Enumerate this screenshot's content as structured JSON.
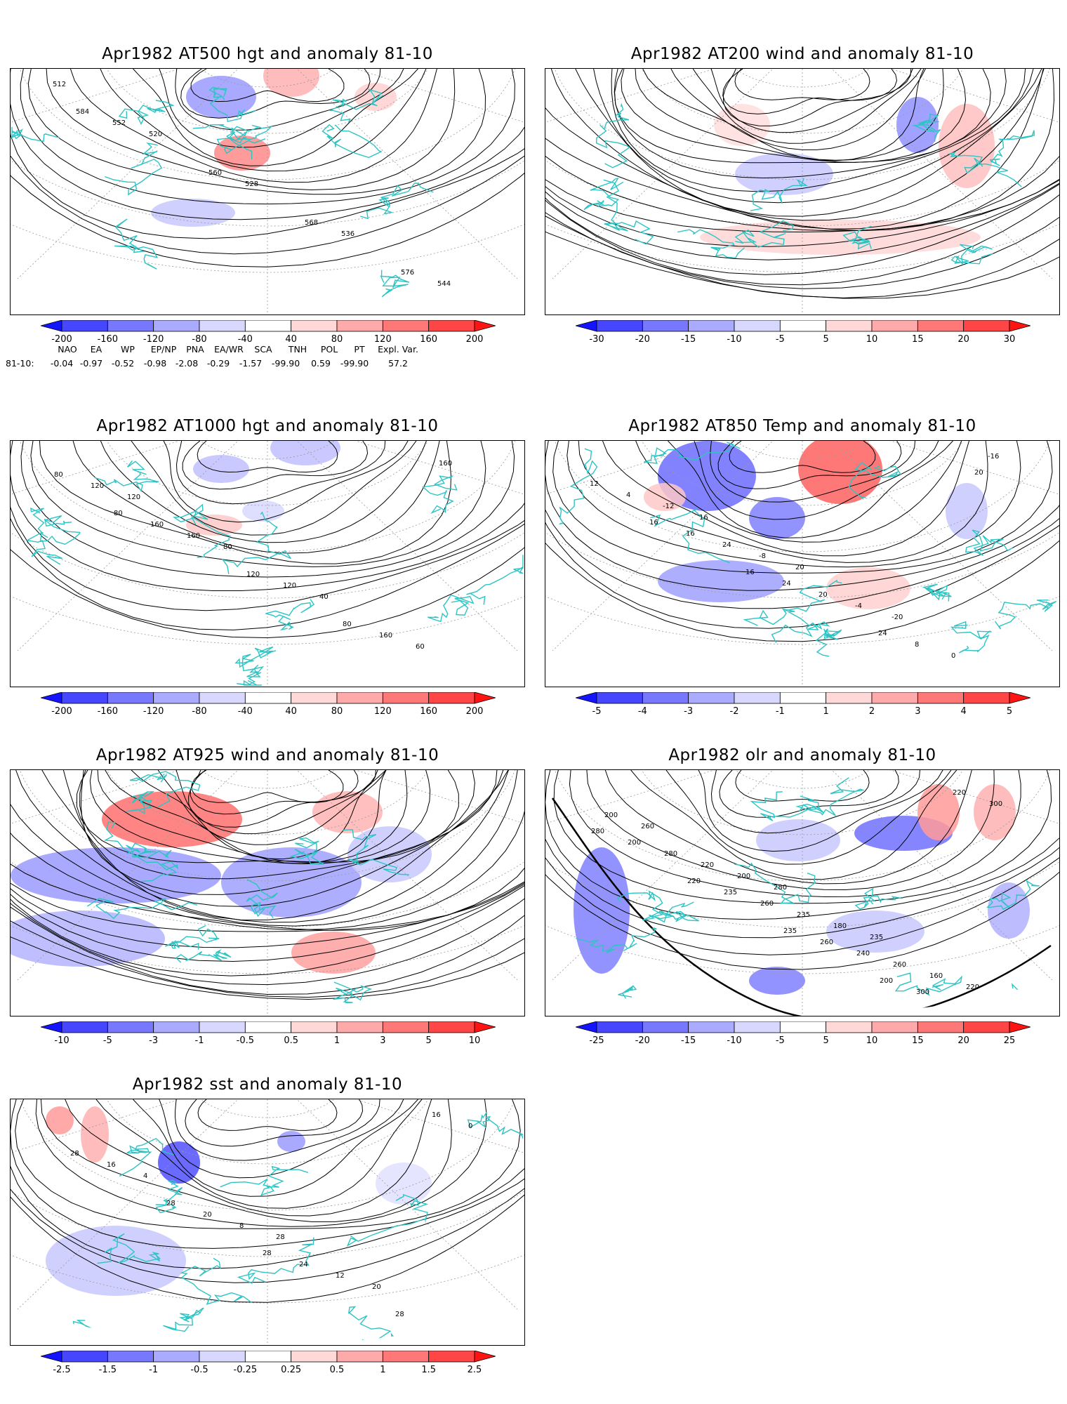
{
  "panels": [
    {
      "id": "p1",
      "title": "Apr1982 AT500 hgt and anomaly 81-10",
      "colorbar": {
        "ticks": [
          "-200",
          "-160",
          "-120",
          "-80",
          "-40",
          "40",
          "80",
          "120",
          "160",
          "200"
        ],
        "colors": [
          "#1414ff",
          "#4646ff",
          "#7878ff",
          "#aaaaff",
          "#d8d8ff",
          "#ffffff",
          "#ffd8d8",
          "#ffaaaa",
          "#ff7878",
          "#ff4646",
          "#ff1414"
        ]
      },
      "contour_labels": [
        "512",
        "520",
        "528",
        "536",
        "544",
        "552",
        "560",
        "568",
        "576",
        "584"
      ]
    },
    {
      "id": "p2",
      "title": "Apr1982 AT200 wind and anomaly 81-10",
      "colorbar": {
        "ticks": [
          "-30",
          "-20",
          "-15",
          "-10",
          "-5",
          "5",
          "10",
          "15",
          "20",
          "30"
        ],
        "colors": [
          "#1414ff",
          "#4646ff",
          "#7878ff",
          "#aaaaff",
          "#d8d8ff",
          "#ffffff",
          "#ffd8d8",
          "#ffaaaa",
          "#ff7878",
          "#ff4646",
          "#ff1414"
        ]
      },
      "contour_labels": []
    },
    {
      "id": "p3",
      "title": "Apr1982 AT1000 hgt and anomaly 81-10",
      "colorbar": {
        "ticks": [
          "-200",
          "-160",
          "-120",
          "-80",
          "-40",
          "40",
          "80",
          "120",
          "160",
          "200"
        ],
        "colors": [
          "#1414ff",
          "#4646ff",
          "#7878ff",
          "#aaaaff",
          "#d8d8ff",
          "#ffffff",
          "#ffd8d8",
          "#ffaaaa",
          "#ff7878",
          "#ff4646",
          "#ff1414"
        ]
      },
      "contour_labels": [
        "120",
        "80",
        "40",
        "60",
        "120",
        "160",
        "120",
        "160",
        "80",
        "160",
        "120",
        "80",
        "160",
        "80"
      ]
    },
    {
      "id": "p4",
      "title": "Apr1982 AT850 Temp and anomaly 81-10",
      "colorbar": {
        "ticks": [
          "-5",
          "-4",
          "-3",
          "-2",
          "-1",
          "1",
          "2",
          "3",
          "4",
          "5"
        ],
        "colors": [
          "#1414ff",
          "#4646ff",
          "#7878ff",
          "#aaaaff",
          "#d8d8ff",
          "#ffffff",
          "#ffd8d8",
          "#ffaaaa",
          "#ff7878",
          "#ff4646",
          "#ff1414"
        ]
      },
      "contour_labels": [
        "16",
        "20",
        "-20",
        "-16",
        "-12",
        "-8",
        "-4",
        "0",
        "4",
        "24",
        "20",
        "8",
        "12",
        "16",
        "24",
        "24",
        "20",
        "16",
        "16"
      ]
    },
    {
      "id": "p5",
      "title": "Apr1982 AT925 wind and anomaly 81-10",
      "colorbar": {
        "ticks": [
          "-10",
          "-5",
          "-3",
          "-1",
          "-0.5",
          "0.5",
          "1",
          "3",
          "5",
          "10"
        ],
        "colors": [
          "#1414ff",
          "#4646ff",
          "#7878ff",
          "#aaaaff",
          "#d8d8ff",
          "#ffffff",
          "#ffd8d8",
          "#ffaaaa",
          "#ff7878",
          "#ff4646",
          "#ff1414"
        ]
      },
      "contour_labels": []
    },
    {
      "id": "p6",
      "title": "Apr1982 olr and anomaly 81-10",
      "colorbar": {
        "ticks": [
          "-25",
          "-20",
          "-15",
          "-10",
          "-5",
          "5",
          "10",
          "15",
          "20",
          "25"
        ],
        "colors": [
          "#1414ff",
          "#4646ff",
          "#7878ff",
          "#aaaaff",
          "#d8d8ff",
          "#ffffff",
          "#ffd8d8",
          "#ffaaaa",
          "#ff7878",
          "#ff4646",
          "#ff1414"
        ]
      },
      "contour_labels": [
        "280",
        "235",
        "220",
        "260",
        "200",
        "180",
        "160",
        "200",
        "220",
        "235",
        "260",
        "300",
        "280",
        "260",
        "240",
        "220",
        "200",
        "235",
        "260",
        "300",
        "280",
        "220",
        "235",
        "200"
      ]
    },
    {
      "id": "p7",
      "title": "Apr1982 sst and anomaly 81-10",
      "colorbar": {
        "ticks": [
          "-2.5",
          "-1.5",
          "-1",
          "-0.5",
          "-0.25",
          "0.25",
          "0.5",
          "1",
          "1.5",
          "2.5"
        ],
        "colors": [
          "#1414ff",
          "#4646ff",
          "#7878ff",
          "#aaaaff",
          "#d8d8ff",
          "#ffffff",
          "#ffd8d8",
          "#ffaaaa",
          "#ff7878",
          "#ff4646",
          "#ff1414"
        ]
      },
      "contour_labels": [
        "28",
        "20",
        "0",
        "4",
        "8",
        "12",
        "16",
        "16",
        "20",
        "24",
        "28",
        "28",
        "28",
        "28"
      ]
    }
  ],
  "indices": {
    "headers": [
      "NAO",
      "EA",
      "WP",
      "EP/NP",
      "PNA",
      "EA/WR",
      "SCA",
      "TNH",
      "POL",
      "PT",
      "Expl. Var."
    ],
    "row_label": "81-10:",
    "values": [
      "-0.04",
      "-0.97",
      "-0.52",
      "-0.98",
      "-2.08",
      "-0.29",
      "-1.57",
      "-99.90",
      "0.59",
      "-99.90",
      "57.2"
    ]
  },
  "map_colors": {
    "coast": "#2ec4c4",
    "contour": "#000000",
    "grid": "#9a9a9a"
  }
}
